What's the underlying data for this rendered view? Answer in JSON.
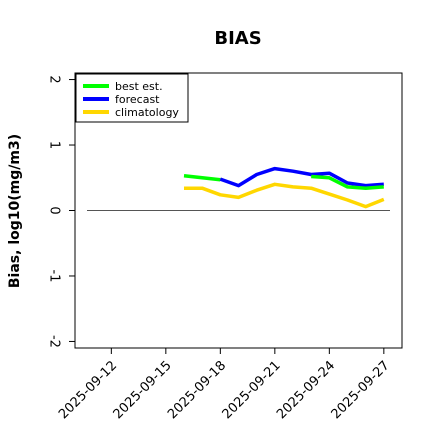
{
  "chart_data": {
    "type": "line",
    "title": "BIAS",
    "xlabel": "",
    "ylabel": "Bias, log10(mg/m3)",
    "x_ticks": [
      "2025-09-12",
      "2025-09-15",
      "2025-09-18",
      "2025-09-21",
      "2025-09-24",
      "2025-09-27"
    ],
    "highlighted_tick": "2025-09-18",
    "highlight_color": "#228b22",
    "xlim": [
      "2025-09-10",
      "2025-09-28"
    ],
    "ylim": [
      -2.1,
      2.1
    ],
    "y_ticks": [
      -2,
      -1,
      0,
      1,
      2
    ],
    "y_tick_labels": [
      "-2",
      "-1",
      "0",
      "1",
      "2"
    ],
    "zero_line": true,
    "grid": false,
    "legend_position": "top-left",
    "series": [
      {
        "name": "best est.",
        "color": "#00ff00",
        "x": [
          "2025-09-16",
          "2025-09-17",
          "2025-09-18"
        ],
        "values": [
          0.53,
          0.5,
          0.47
        ]
      },
      {
        "name": "forecast",
        "color": "#0000ff",
        "x": [
          "2025-09-18",
          "2025-09-19",
          "2025-09-20",
          "2025-09-21",
          "2025-09-22",
          "2025-09-23",
          "2025-09-24",
          "2025-09-25",
          "2025-09-26",
          "2025-09-27"
        ],
        "values": [
          0.48,
          0.38,
          0.55,
          0.64,
          0.6,
          0.55,
          0.57,
          0.42,
          0.38,
          0.4
        ]
      },
      {
        "name": "climatology",
        "color": "#ffd700",
        "x": [
          "2025-09-16",
          "2025-09-17",
          "2025-09-18",
          "2025-09-19",
          "2025-09-20",
          "2025-09-21",
          "2025-09-22",
          "2025-09-23",
          "2025-09-24",
          "2025-09-25",
          "2025-09-26",
          "2025-09-27"
        ],
        "values": [
          0.34,
          0.34,
          0.24,
          0.2,
          0.31,
          0.4,
          0.36,
          0.34,
          0.25,
          0.16,
          0.06,
          0.17
        ]
      },
      {
        "name": "",
        "color": "#00ff00",
        "x": [
          "2025-09-23",
          "2025-09-24",
          "2025-09-25",
          "2025-09-26",
          "2025-09-27"
        ],
        "values": [
          0.52,
          0.5,
          0.36,
          0.34,
          0.36
        ]
      }
    ]
  }
}
